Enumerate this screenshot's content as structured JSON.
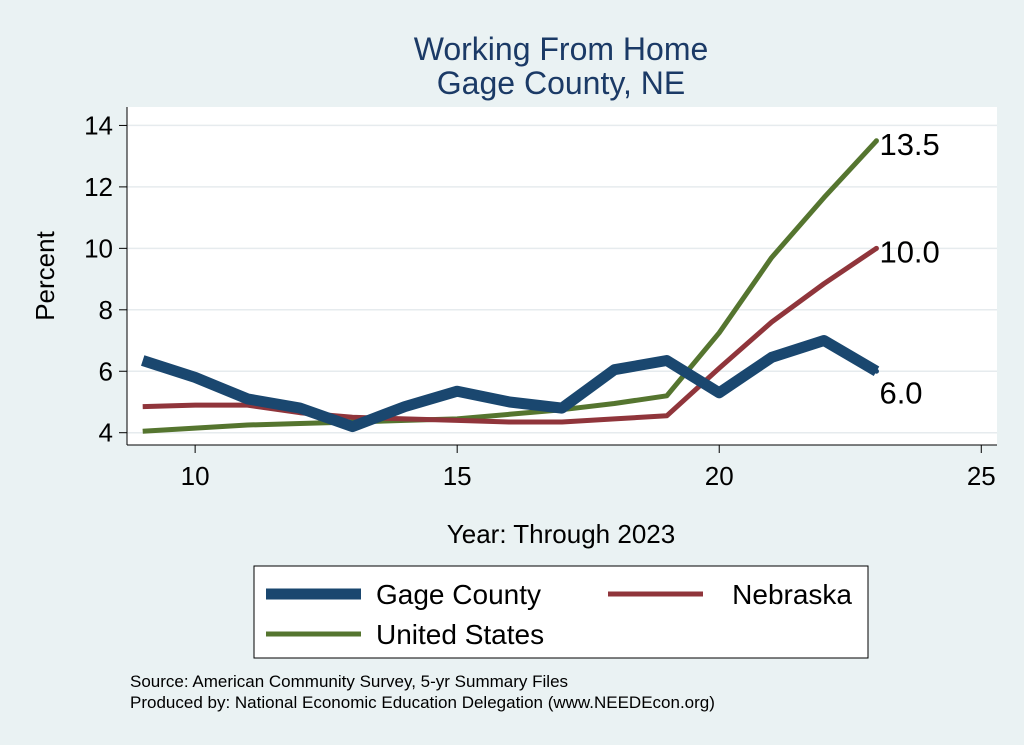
{
  "chart_data": {
    "type": "line",
    "title": "Working From Home",
    "subtitle": "Gage County, NE",
    "xlabel": "Year: Through 2023",
    "ylabel": "Percent",
    "xlim": [
      8.7,
      25.3
    ],
    "ylim": [
      3.6,
      14.6
    ],
    "xticks": [
      10,
      15,
      20,
      25
    ],
    "yticks": [
      4,
      6,
      8,
      10,
      12,
      14
    ],
    "x": [
      9,
      10,
      11,
      12,
      13,
      14,
      15,
      16,
      17,
      18,
      19,
      20,
      21,
      22,
      23
    ],
    "grid": true,
    "series": [
      {
        "name": "Gage County",
        "color": "#1a476f",
        "values": [
          6.35,
          5.8,
          5.1,
          4.8,
          4.2,
          4.85,
          5.35,
          5.0,
          4.8,
          6.05,
          6.35,
          5.3,
          6.45,
          7.0,
          6.0
        ],
        "end_label": "6.0"
      },
      {
        "name": "Nebraska",
        "color": "#90353b",
        "values": [
          4.85,
          4.9,
          4.9,
          4.65,
          4.5,
          4.45,
          4.4,
          4.35,
          4.35,
          4.45,
          4.55,
          6.1,
          7.6,
          8.85,
          10.0
        ],
        "end_label": "10.0"
      },
      {
        "name": "United States",
        "color": "#55752f",
        "values": [
          4.05,
          4.15,
          4.25,
          4.3,
          4.35,
          4.4,
          4.45,
          4.6,
          4.75,
          4.95,
          5.2,
          7.25,
          9.7,
          11.65,
          13.5
        ],
        "end_label": "13.5"
      }
    ],
    "legend_position": "bottom"
  },
  "notes": {
    "source": "Source: American Community Survey, 5-yr Summary Files",
    "produced": "Produced by: National Economic Education Delegation (www.NEEDEcon.org)"
  }
}
